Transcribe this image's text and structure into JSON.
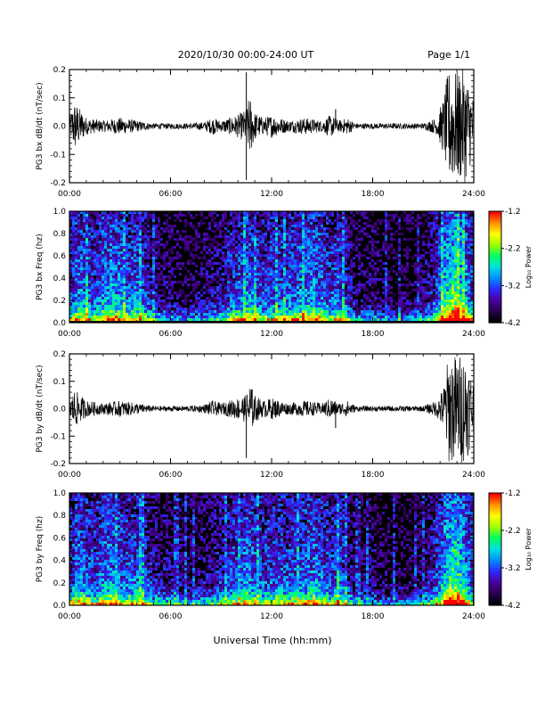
{
  "header": {
    "title": "2020/10/30  00:00-24:00 UT",
    "page": "Page 1/1"
  },
  "footer": {
    "xlabel": "Universal Time (hh:mm)"
  },
  "colorbar": {
    "label": "Log₁₀ Power",
    "ticks": [
      "-1.2",
      "-2.2",
      "-3.2",
      "-4.2"
    ],
    "range": [
      -4.2,
      -1.2
    ],
    "colors": [
      "#000000",
      "#2a0050",
      "#4b00a0",
      "#2a2aff",
      "#0090ff",
      "#00e0e0",
      "#00ff60",
      "#a0ff00",
      "#ffff00",
      "#ff9000",
      "#ff0000"
    ]
  },
  "chart_data": [
    {
      "type": "line",
      "panel": "bx-waveform",
      "ylabel": "PG3 bx dB/dt (nT/sec)",
      "xlim": [
        0,
        24
      ],
      "ylim": [
        -0.2,
        0.2
      ],
      "xticks": [
        "00:00",
        "06:00",
        "12:00",
        "18:00",
        "24:00"
      ],
      "yticks": [
        "0.2",
        "0.1",
        "0.0",
        "-0.1",
        "-0.2"
      ],
      "envelope": {
        "x": [
          0,
          0.3,
          1,
          2,
          3,
          4,
          5,
          6,
          7,
          8,
          8.5,
          9,
          10,
          10.5,
          10.7,
          11,
          11.5,
          12,
          13,
          14,
          15,
          15.5,
          16,
          16.5,
          17,
          18,
          19,
          20,
          21,
          21.8,
          22.2,
          22.5,
          23,
          23.5,
          24
        ],
        "amplitude": [
          0.03,
          0.09,
          0.03,
          0.02,
          0.03,
          0.02,
          0.01,
          0.01,
          0.01,
          0.015,
          0.03,
          0.02,
          0.04,
          0.06,
          0.11,
          0.05,
          0.03,
          0.04,
          0.02,
          0.03,
          0.02,
          0.04,
          0.02,
          0.03,
          0.01,
          0.01,
          0.01,
          0.01,
          0.01,
          0.03,
          0.1,
          0.2,
          0.2,
          0.2,
          0.1
        ]
      },
      "spikes": [
        {
          "x": 10.5,
          "y": 0.19
        },
        {
          "x": 10.5,
          "y": -0.19
        },
        {
          "x": 15.8,
          "y": 0.06
        }
      ]
    },
    {
      "type": "heatmap",
      "panel": "bx-spectrogram",
      "ylabel": "PG3 bx Freq (hz)",
      "xlim": [
        0,
        24
      ],
      "ylim": [
        0,
        1.0
      ],
      "xticks": [
        "00:00",
        "06:00",
        "12:00",
        "18:00",
        "24:00"
      ],
      "yticks": [
        "1.0",
        "0.8",
        "0.6",
        "0.4",
        "0.2",
        "0.0"
      ],
      "zrange": [
        -4.2,
        -1.2
      ],
      "activity": {
        "x": [
          0,
          0.5,
          1,
          1.5,
          2,
          2.5,
          3,
          3.5,
          4,
          4.5,
          5,
          6,
          7,
          8,
          9,
          9.5,
          10,
          10.5,
          11,
          11.5,
          12,
          13,
          14,
          14.5,
          15,
          15.5,
          16,
          16.5,
          17,
          18,
          19,
          20,
          21,
          21.5,
          22,
          22.5,
          23,
          23.5,
          24
        ],
        "level": [
          0.35,
          0.5,
          0.45,
          0.35,
          0.5,
          0.55,
          0.5,
          0.4,
          0.45,
          0.35,
          0.2,
          0.15,
          0.1,
          0.15,
          0.25,
          0.35,
          0.4,
          0.5,
          0.45,
          0.35,
          0.4,
          0.4,
          0.5,
          0.55,
          0.45,
          0.35,
          0.45,
          0.3,
          0.15,
          0.15,
          0.1,
          0.1,
          0.15,
          0.25,
          0.45,
          0.7,
          0.8,
          0.6,
          0.35
        ]
      }
    },
    {
      "type": "line",
      "panel": "by-waveform",
      "ylabel": "PG3 by dB/dt (nT/sec)",
      "xlim": [
        0,
        24
      ],
      "ylim": [
        -0.2,
        0.2
      ],
      "xticks": [
        "00:00",
        "06:00",
        "12:00",
        "18:00",
        "24:00"
      ],
      "yticks": [
        "0.2",
        "0.1",
        "0.0",
        "-0.1",
        "-0.2"
      ],
      "envelope": {
        "x": [
          0,
          0.3,
          1,
          2,
          3,
          4,
          5,
          6,
          7,
          8,
          8.5,
          9,
          10,
          10.5,
          10.7,
          11,
          11.5,
          12,
          13,
          14,
          15,
          15.5,
          16,
          16.5,
          17,
          18,
          19,
          20,
          21,
          21.8,
          22.2,
          22.5,
          23,
          23.5,
          24
        ],
        "amplitude": [
          0.03,
          0.07,
          0.03,
          0.02,
          0.03,
          0.02,
          0.01,
          0.01,
          0.01,
          0.015,
          0.03,
          0.02,
          0.04,
          0.05,
          0.1,
          0.05,
          0.03,
          0.04,
          0.02,
          0.03,
          0.02,
          0.04,
          0.02,
          0.03,
          0.01,
          0.01,
          0.01,
          0.01,
          0.01,
          0.03,
          0.08,
          0.2,
          0.2,
          0.2,
          0.1
        ]
      },
      "spikes": [
        {
          "x": 10.8,
          "y": 0.07
        },
        {
          "x": 10.5,
          "y": -0.18
        },
        {
          "x": 15.8,
          "y": -0.07
        }
      ]
    },
    {
      "type": "heatmap",
      "panel": "by-spectrogram",
      "ylabel": "PG3 by Freq (hz)",
      "xlim": [
        0,
        24
      ],
      "ylim": [
        0,
        1.0
      ],
      "xticks": [
        "00:00",
        "06:00",
        "12:00",
        "18:00",
        "24:00"
      ],
      "yticks": [
        "1.0",
        "0.8",
        "0.6",
        "0.4",
        "0.2",
        "0.0"
      ],
      "zrange": [
        -4.2,
        -1.2
      ],
      "activity": {
        "x": [
          0,
          0.5,
          1,
          1.5,
          2,
          2.5,
          3,
          3.5,
          4,
          4.5,
          5,
          6,
          7,
          8,
          9,
          9.5,
          10,
          10.5,
          11,
          11.5,
          12,
          13,
          14,
          14.5,
          15,
          15.5,
          16,
          16.5,
          17,
          18,
          19,
          20,
          21,
          21.5,
          22,
          22.5,
          23,
          23.5,
          24
        ],
        "level": [
          0.35,
          0.5,
          0.45,
          0.35,
          0.5,
          0.5,
          0.45,
          0.4,
          0.45,
          0.35,
          0.25,
          0.2,
          0.15,
          0.2,
          0.3,
          0.35,
          0.4,
          0.5,
          0.45,
          0.35,
          0.4,
          0.4,
          0.45,
          0.5,
          0.45,
          0.35,
          0.45,
          0.3,
          0.15,
          0.15,
          0.1,
          0.1,
          0.15,
          0.25,
          0.45,
          0.7,
          0.8,
          0.6,
          0.35
        ]
      }
    }
  ]
}
